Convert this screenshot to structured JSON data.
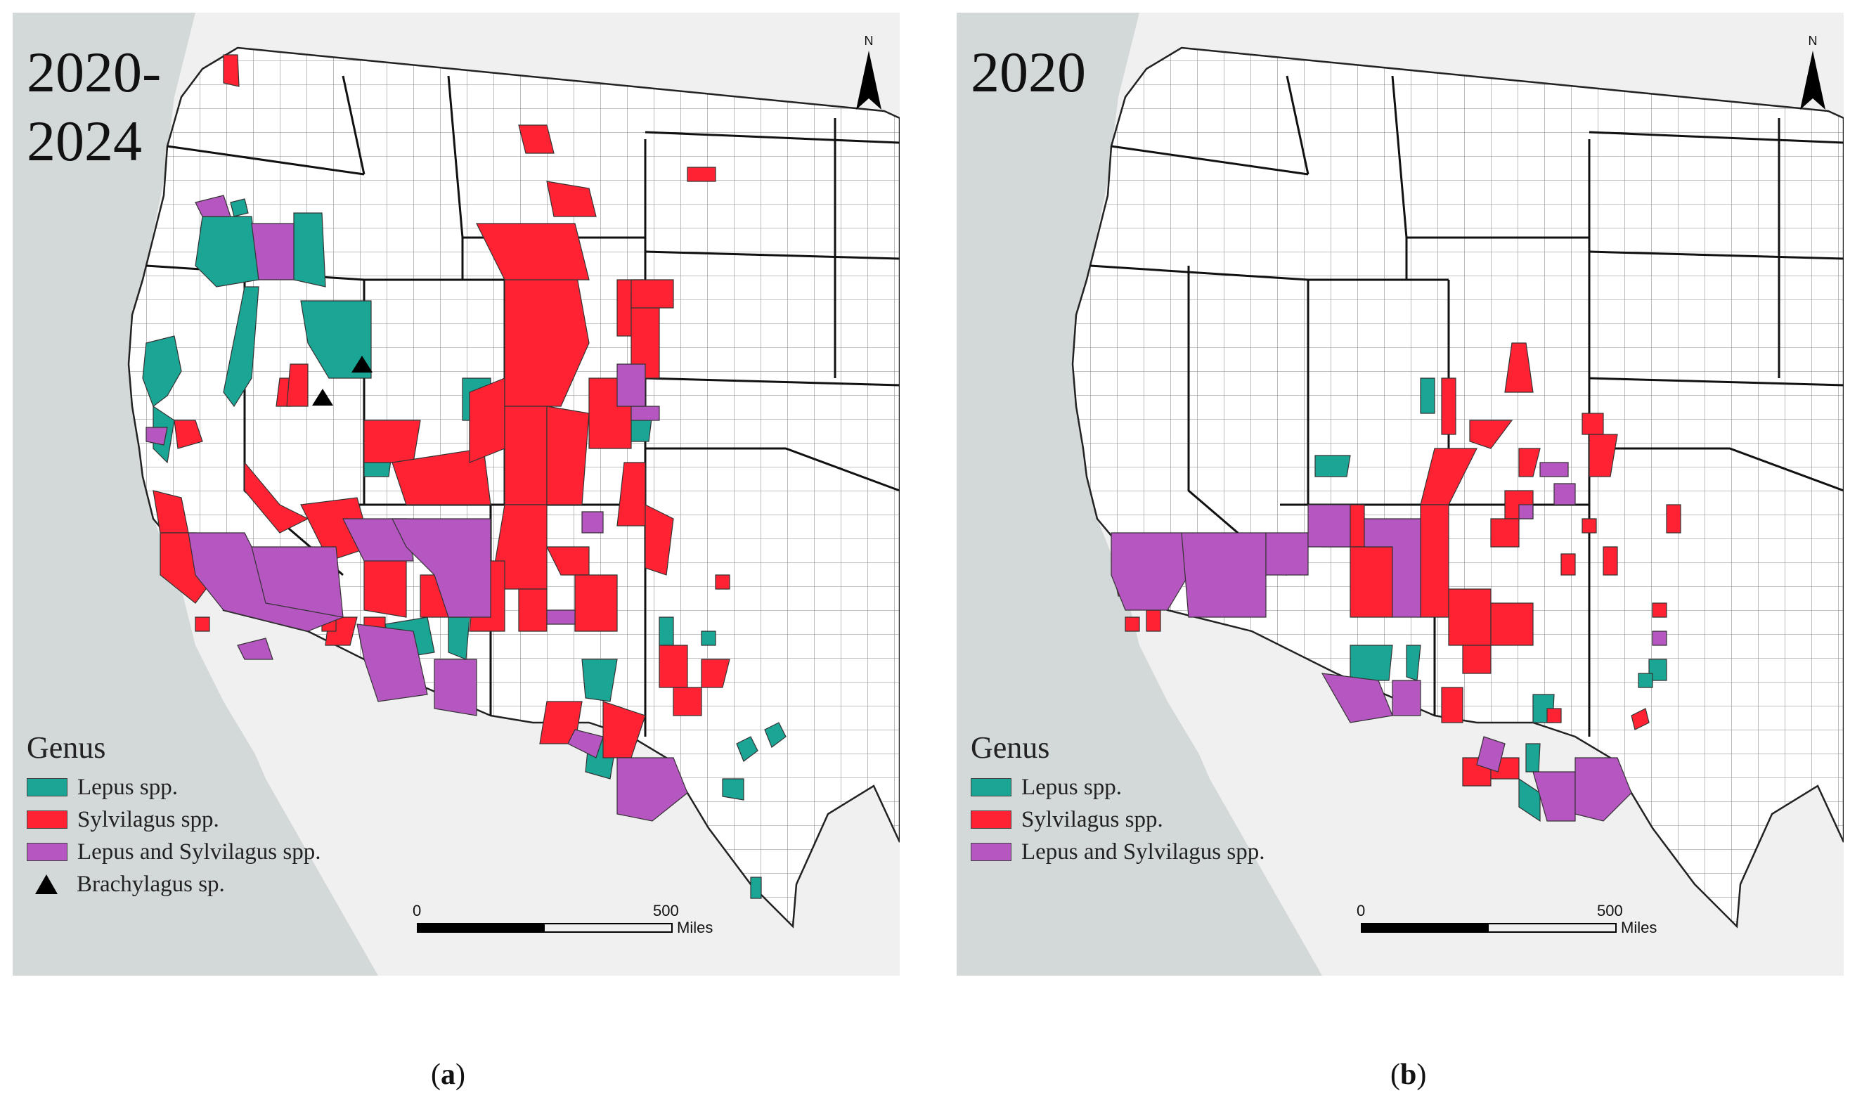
{
  "colors": {
    "lepus": "#1aa595",
    "sylvilagus": "#ff2233",
    "both": "#b656c0",
    "brachylagus": "#000000",
    "ocean": "#d3d8d8",
    "land_outside": "#f0f0f0",
    "county": "#ffffff"
  },
  "panels": [
    {
      "id": "a",
      "title": "2020-\n2024",
      "north_label": "N",
      "legend": {
        "title": "Genus",
        "items": [
          {
            "label": "Lepus spp.",
            "key": "lepus",
            "symbol": "square"
          },
          {
            "label": "Sylvilagus spp.",
            "key": "sylvilagus",
            "symbol": "square"
          },
          {
            "label": "Lepus and Sylvilagus spp.",
            "key": "both",
            "symbol": "square"
          },
          {
            "label": "Brachylagus sp.",
            "key": "brachylagus",
            "symbol": "triangle"
          }
        ]
      },
      "scale": {
        "min_label": "0",
        "max_label": "500",
        "unit": "Miles"
      },
      "caption_letter": "a"
    },
    {
      "id": "b",
      "title": "2020",
      "north_label": "N",
      "legend": {
        "title": "Genus",
        "items": [
          {
            "label": "Lepus spp.",
            "key": "lepus",
            "symbol": "square"
          },
          {
            "label": "Sylvilagus spp.",
            "key": "sylvilagus",
            "symbol": "square"
          },
          {
            "label": "Lepus and Sylvilagus spp.",
            "key": "both",
            "symbol": "square"
          }
        ]
      },
      "scale": {
        "min_label": "0",
        "max_label": "500",
        "unit": "Miles"
      },
      "caption_letter": "b"
    }
  ]
}
